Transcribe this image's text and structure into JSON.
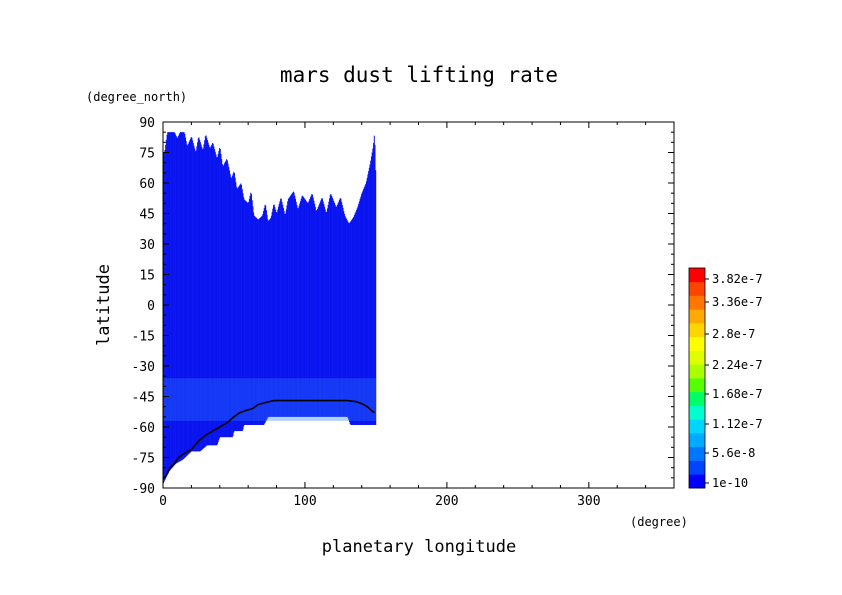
{
  "chart_data": {
    "type": "heatmap",
    "title": "mars dust lifting rate",
    "xlabel": "planetary longitude",
    "ylabel": "latitude",
    "x_unit": "(degree)",
    "y_unit": "(degree_north)",
    "xlim": [
      0,
      360
    ],
    "ylim": [
      -90,
      90
    ],
    "x_ticks": [
      0,
      100,
      200,
      300
    ],
    "y_ticks": [
      90,
      75,
      60,
      45,
      30,
      15,
      0,
      -15,
      -30,
      -45,
      -60,
      -75,
      -90
    ],
    "x_tick_labels": [
      "0",
      "100",
      "200",
      "300"
    ],
    "y_tick_labels": [
      "90",
      "75",
      "60",
      "45",
      "30",
      "15",
      "0",
      "-15",
      "-30",
      "-45",
      "-60",
      "-75",
      "-90"
    ],
    "data_extent": {
      "longitude_range": [
        0,
        150
      ],
      "north_edge": [
        [
          1,
          75
        ],
        [
          3,
          85
        ],
        [
          8,
          85
        ],
        [
          10,
          82
        ],
        [
          12,
          85
        ],
        [
          15,
          85
        ],
        [
          17,
          78
        ],
        [
          20,
          83
        ],
        [
          23,
          75
        ],
        [
          25,
          83
        ],
        [
          28,
          76
        ],
        [
          30,
          84
        ],
        [
          33,
          77
        ],
        [
          35,
          80
        ],
        [
          38,
          72
        ],
        [
          40,
          78
        ],
        [
          42,
          68
        ],
        [
          45,
          72
        ],
        [
          48,
          62
        ],
        [
          50,
          66
        ],
        [
          52,
          57
        ],
        [
          55,
          60
        ],
        [
          57,
          52
        ],
        [
          60,
          50
        ],
        [
          62,
          56
        ],
        [
          64,
          44
        ],
        [
          67,
          42
        ],
        [
          70,
          44
        ],
        [
          72,
          50
        ],
        [
          74,
          41
        ],
        [
          76,
          43
        ],
        [
          78,
          50
        ],
        [
          80,
          45
        ],
        [
          83,
          53
        ],
        [
          86,
          44
        ],
        [
          88,
          52
        ],
        [
          92,
          56
        ],
        [
          95,
          47
        ],
        [
          98,
          54
        ],
        [
          102,
          50
        ],
        [
          105,
          55
        ],
        [
          108,
          46
        ],
        [
          112,
          53
        ],
        [
          115,
          45
        ],
        [
          118,
          55
        ],
        [
          122,
          48
        ],
        [
          125,
          53
        ],
        [
          128,
          44
        ],
        [
          131,
          40
        ],
        [
          134,
          43
        ],
        [
          137,
          48
        ],
        [
          140,
          55
        ],
        [
          143,
          60
        ],
        [
          146,
          70
        ],
        [
          148,
          78
        ],
        [
          149,
          85
        ],
        [
          150,
          60
        ]
      ],
      "south_edge": [
        [
          0,
          -88
        ],
        [
          4,
          -82
        ],
        [
          9,
          -78
        ],
        [
          14,
          -76
        ],
        [
          20,
          -72
        ],
        [
          26,
          -72
        ],
        [
          31,
          -69
        ],
        [
          38,
          -69
        ],
        [
          40,
          -65
        ],
        [
          49,
          -65
        ],
        [
          50,
          -62
        ],
        [
          56,
          -62
        ],
        [
          57,
          -59
        ],
        [
          71,
          -59
        ],
        [
          74,
          -55
        ],
        [
          130,
          -55
        ],
        [
          132,
          -59
        ],
        [
          150,
          -59
        ]
      ]
    },
    "contour_line": [
      [
        1,
        -85
      ],
      [
        3,
        -83
      ],
      [
        5,
        -80
      ],
      [
        8,
        -78
      ],
      [
        11,
        -75
      ],
      [
        15,
        -73
      ],
      [
        20,
        -71
      ],
      [
        25,
        -67
      ],
      [
        30,
        -64
      ],
      [
        35,
        -62
      ],
      [
        40,
        -60
      ],
      [
        45,
        -58
      ],
      [
        50,
        -55
      ],
      [
        54,
        -53
      ],
      [
        58,
        -52
      ],
      [
        63,
        -51
      ],
      [
        67,
        -49
      ],
      [
        72,
        -48
      ],
      [
        78,
        -47
      ],
      [
        90,
        -47
      ],
      [
        100,
        -47
      ],
      [
        110,
        -47
      ],
      [
        120,
        -47
      ],
      [
        130,
        -47
      ],
      [
        136,
        -47.5
      ],
      [
        140,
        -48.5
      ],
      [
        144,
        -50
      ],
      [
        147,
        -52
      ],
      [
        149,
        -53
      ]
    ],
    "colorbar": {
      "labels": [
        "3.82e-7",
        "3.36e-7",
        "2.8e-7",
        "2.24e-7",
        "1.68e-7",
        "1.12e-7",
        "5.6e-8",
        "1e-10"
      ],
      "colors": [
        "#0000ff",
        "#0044ff",
        "#0077ff",
        "#00aaff",
        "#00d5ff",
        "#00ffcc",
        "#00ff66",
        "#55ff00",
        "#aaff00",
        "#ddff00",
        "#ffff00",
        "#ffd500",
        "#ffaa00",
        "#ff7700",
        "#ff4400",
        "#ff0000"
      ],
      "field_color": "#0a14f0",
      "enhanced_color": "#2a7dff"
    }
  }
}
